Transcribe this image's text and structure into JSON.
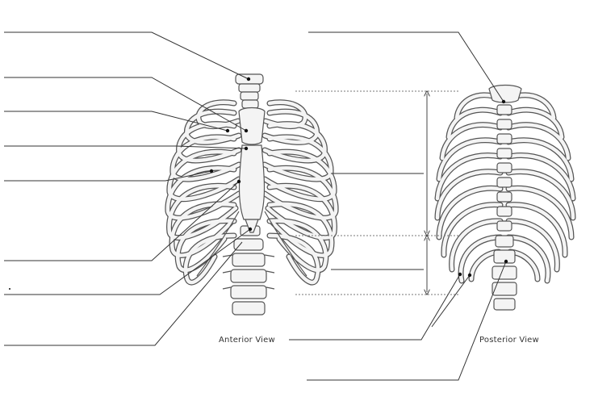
{
  "diagram": {
    "views": [
      {
        "id": "anterior",
        "caption": "Anterior View"
      },
      {
        "id": "posterior",
        "caption": "Posterior View"
      }
    ],
    "anterior_labels": [
      {
        "id": "label-1",
        "text": ""
      },
      {
        "id": "label-2",
        "text": ""
      },
      {
        "id": "label-3",
        "text": ""
      },
      {
        "id": "label-4",
        "text": ""
      },
      {
        "id": "label-5",
        "text": ""
      },
      {
        "id": "label-6",
        "text": ""
      },
      {
        "id": "label-7",
        "text": ""
      },
      {
        "id": "label-8",
        "text": ""
      }
    ],
    "posterior_labels": [
      {
        "id": "label-top",
        "text": ""
      },
      {
        "id": "label-range-upper",
        "text": ""
      },
      {
        "id": "label-range-lower",
        "text": ""
      },
      {
        "id": "label-floating",
        "text": ""
      },
      {
        "id": "label-bottom",
        "text": ""
      }
    ],
    "colors": {
      "line": "#333333",
      "bone_fill": "#f4f4f4",
      "bone_stroke": "#555555",
      "dashed": "#777777",
      "dot": "#111111"
    }
  }
}
